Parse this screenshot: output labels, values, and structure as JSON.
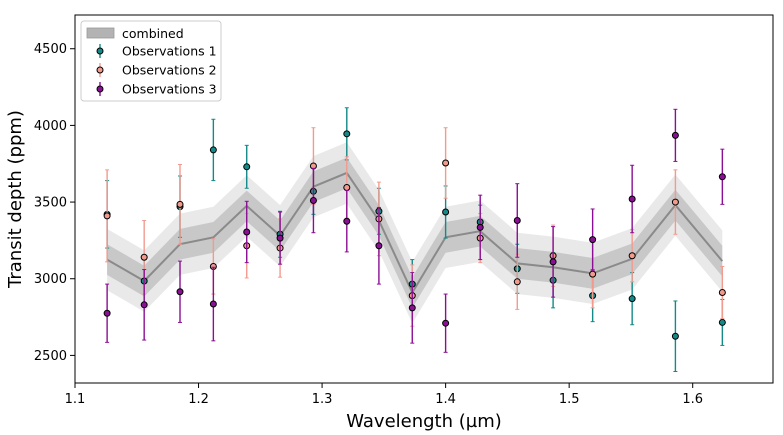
{
  "chart_data": {
    "type": "scatter",
    "title": "",
    "xlabel": "Wavelength (µm)",
    "ylabel": "Transit depth (ppm)",
    "xlim": [
      1.1,
      1.665
    ],
    "ylim": [
      2320,
      4720
    ],
    "x_ticks": [
      1.1,
      1.2,
      1.3,
      1.4,
      1.5,
      1.6
    ],
    "x_tick_labels": [
      "1.1",
      "1.2",
      "1.3",
      "1.4",
      "1.5",
      "1.6"
    ],
    "y_ticks": [
      2500,
      3000,
      3500,
      4000,
      4500
    ],
    "y_tick_labels": [
      "2500",
      "3000",
      "3500",
      "4000",
      "4500"
    ],
    "legend_position": "top-left",
    "combined": {
      "name": "combined",
      "x": [
        1.126,
        1.156,
        1.185,
        1.212,
        1.239,
        1.266,
        1.293,
        1.32,
        1.346,
        1.373,
        1.4,
        1.428,
        1.458,
        1.487,
        1.519,
        1.551,
        1.586,
        1.624
      ],
      "y": [
        3125,
        2985,
        3225,
        3270,
        3475,
        3280,
        3600,
        3690,
        3380,
        2910,
        3270,
        3310,
        3100,
        3075,
        3035,
        3130,
        3480,
        3115
      ],
      "inner_band": 100,
      "outer_band": 200
    },
    "series": [
      {
        "name": "Observations 1",
        "color": "#138a88",
        "x": [
          1.126,
          1.156,
          1.185,
          1.212,
          1.239,
          1.266,
          1.293,
          1.32,
          1.346,
          1.373,
          1.4,
          1.428,
          1.458,
          1.487,
          1.519,
          1.551,
          1.586,
          1.624
        ],
        "y": [
          3420,
          2985,
          3470,
          3840,
          3730,
          3290,
          3570,
          3945,
          3440,
          2965,
          3435,
          3370,
          3065,
          2990,
          2890,
          2870,
          2625,
          2715
        ],
        "err": [
          220,
          140,
          200,
          200,
          140,
          150,
          150,
          170,
          150,
          160,
          170,
          110,
          160,
          180,
          170,
          170,
          230,
          150
        ]
      },
      {
        "name": "Observations 2",
        "color": "#f39a8e",
        "x": [
          1.126,
          1.156,
          1.185,
          1.212,
          1.239,
          1.266,
          1.293,
          1.32,
          1.346,
          1.373,
          1.4,
          1.428,
          1.458,
          1.487,
          1.519,
          1.551,
          1.586,
          1.624
        ],
        "y": [
          3410,
          3140,
          3485,
          3080,
          3215,
          3200,
          3735,
          3595,
          3390,
          2890,
          3755,
          3265,
          2980,
          3150,
          3030,
          3150,
          3500,
          2910
        ],
        "err": [
          300,
          240,
          260,
          180,
          210,
          190,
          250,
          200,
          240,
          200,
          230,
          160,
          180,
          200,
          220,
          170,
          210,
          170
        ]
      },
      {
        "name": "Observations 3",
        "color": "#8b0f94",
        "x": [
          1.126,
          1.156,
          1.185,
          1.212,
          1.239,
          1.266,
          1.293,
          1.32,
          1.346,
          1.373,
          1.4,
          1.428,
          1.458,
          1.487,
          1.519,
          1.551,
          1.586,
          1.624
        ],
        "y": [
          2775,
          2830,
          2915,
          2835,
          3305,
          3265,
          3510,
          3375,
          3215,
          2810,
          2710,
          3335,
          3380,
          3110,
          3255,
          3520,
          3935,
          3665
        ],
        "err": [
          190,
          230,
          200,
          240,
          200,
          170,
          210,
          200,
          250,
          230,
          190,
          210,
          240,
          230,
          200,
          220,
          170,
          180
        ]
      }
    ]
  }
}
